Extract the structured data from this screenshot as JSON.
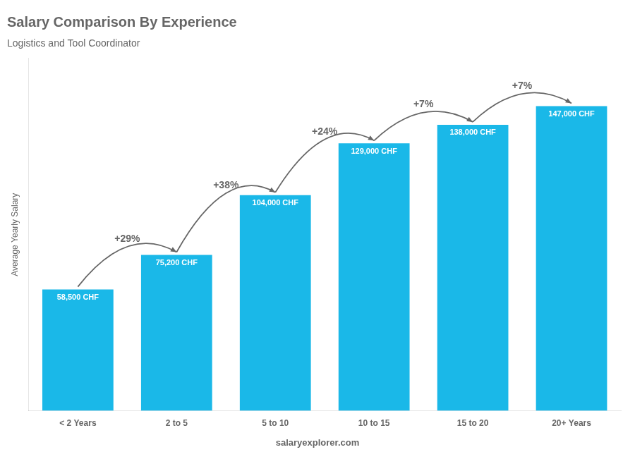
{
  "chart_data": {
    "type": "bar",
    "title": "Salary Comparison By Experience",
    "subtitle": "Logistics and Tool Coordinator",
    "ylabel": "Average Yearly Salary",
    "categories": [
      "< 2 Years",
      "2 to 5",
      "5 to 10",
      "10 to 15",
      "15 to 20",
      "20+ Years"
    ],
    "values": [
      58500,
      75200,
      104000,
      129000,
      138000,
      147000
    ],
    "value_labels": [
      "58,500 CHF",
      "75,200 CHF",
      "104,000 CHF",
      "129,000 CHF",
      "138,000 CHF",
      "147,000 CHF"
    ],
    "data_labels": true,
    "color": "#1ab8e8",
    "ylim": [
      0,
      170000
    ],
    "grid": false,
    "tick_labels": "x",
    "annotations": [
      "+29%",
      "+38%",
      "+24%",
      "+7%",
      "+7%"
    ],
    "source": "salaryexplorer.com"
  }
}
